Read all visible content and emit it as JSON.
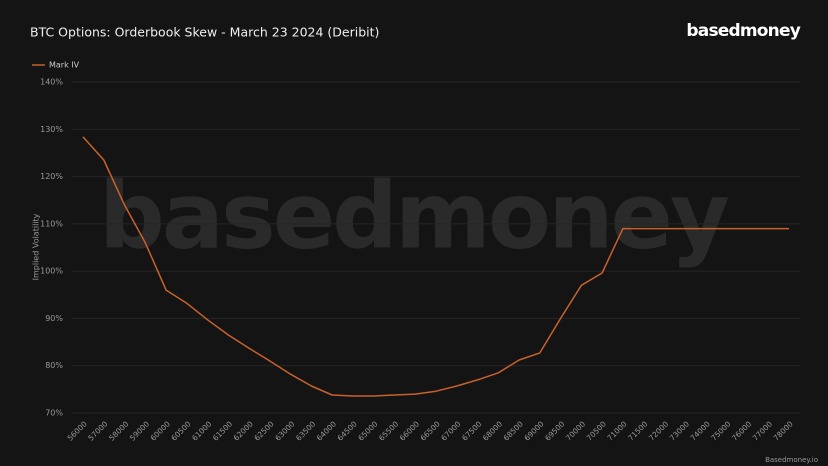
{
  "chart_data": {
    "type": "line",
    "title": "BTC Options: Orderbook Skew - March 23 2024 (Deribit)",
    "brand": "basedmoney",
    "watermark": "basedmoney",
    "source": "Basedmoney.io",
    "y_label": "Implied Volatility",
    "categories": [
      "56000",
      "57000",
      "58000",
      "59000",
      "60000",
      "60500",
      "61000",
      "61500",
      "62000",
      "62500",
      "63000",
      "63500",
      "64000",
      "64500",
      "65000",
      "65500",
      "66000",
      "66500",
      "67000",
      "67500",
      "68000",
      "68500",
      "69000",
      "69500",
      "70000",
      "70500",
      "71000",
      "71500",
      "72000",
      "73000",
      "74000",
      "75000",
      "76000",
      "77000",
      "78000"
    ],
    "series": [
      {
        "name": "Mark IV",
        "color": "#c8622c",
        "values": [
          128.4,
          123.5,
          114,
          106,
          96,
          93.2,
          89.7,
          86.5,
          83.7,
          81,
          78.2,
          75.7,
          73.8,
          73.6,
          73.6,
          73.8,
          74,
          74.6,
          75.7,
          77,
          78.5,
          81.2,
          82.7,
          90,
          97,
          99.6,
          109,
          109,
          109,
          109,
          109,
          109,
          109,
          109,
          109
        ]
      }
    ],
    "ylim": [
      70,
      140
    ],
    "yticks": [
      {
        "value": 70,
        "label": "70%"
      },
      {
        "value": 80,
        "label": "80%"
      },
      {
        "value": 90,
        "label": "90%"
      },
      {
        "value": 100,
        "label": "100%"
      },
      {
        "value": 110,
        "label": "110%"
      },
      {
        "value": 120,
        "label": "120%"
      },
      {
        "value": 130,
        "label": "130%"
      },
      {
        "value": 140,
        "label": "140%"
      }
    ],
    "grid": true,
    "legend": "top-left"
  }
}
